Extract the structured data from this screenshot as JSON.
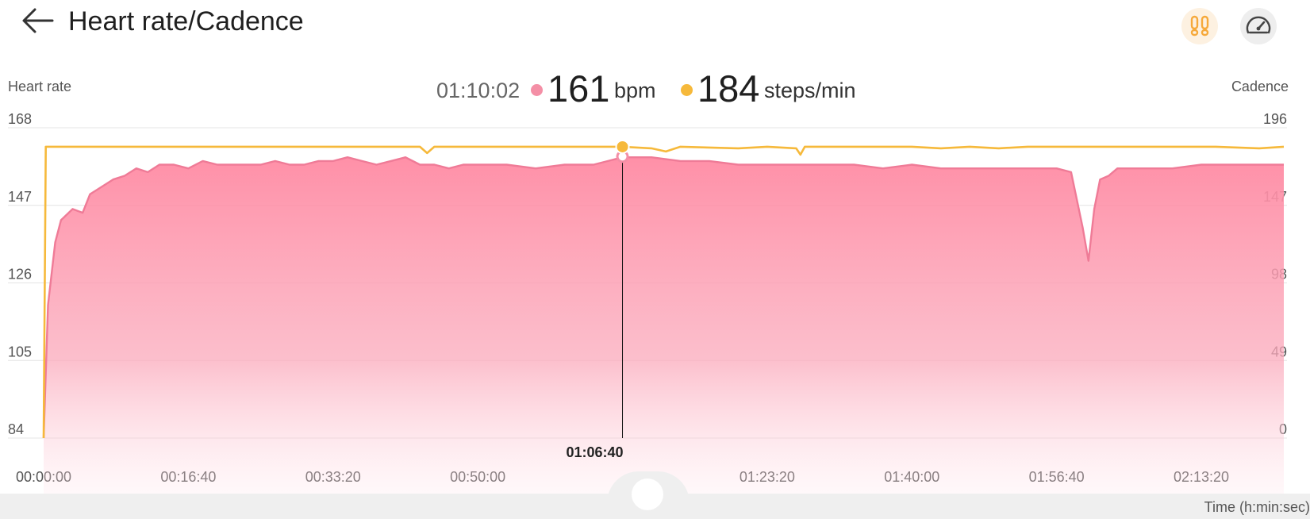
{
  "header": {
    "title": "Heart rate/Cadence"
  },
  "axes": {
    "left_title": "Heart rate",
    "right_title": "Cadence",
    "x_unit": "Time (h:min:sec)"
  },
  "readout": {
    "time": "01:10:02",
    "hr_value": "161",
    "hr_unit": "bpm",
    "cad_value": "184",
    "cad_unit": "steps/min"
  },
  "colors": {
    "heart_rate": "#f48fa6",
    "heart_rate_line": "#ef7b97",
    "cadence": "#f6b93b",
    "steps_accent": "#f6a93b"
  },
  "icons": {
    "back": "arrow-left-icon",
    "steps": "footsteps-icon",
    "speed": "speedometer-icon"
  },
  "chart_data": {
    "type": "area",
    "xlabel": "Time (h:min:sec)",
    "x_ticks": [
      "00:00:00",
      "00:16:40",
      "00:33:20",
      "00:50:00",
      "01:23:20",
      "01:40:00",
      "01:56:40",
      "02:13:20"
    ],
    "x_tick_seconds": [
      0,
      1000,
      2000,
      3000,
      5000,
      6000,
      7000,
      8000
    ],
    "xlim": [
      0,
      8570
    ],
    "cursor": {
      "label": "01:06:40",
      "seconds": 4000
    },
    "left_axis": {
      "title": "Heart rate",
      "ticks": [
        168,
        147,
        126,
        105,
        84
      ],
      "ylim": [
        84,
        168
      ]
    },
    "right_axis": {
      "title": "Cadence",
      "ticks": [
        196,
        147,
        98,
        49,
        0
      ],
      "ylim": [
        0,
        196
      ]
    },
    "grid": true,
    "series": [
      {
        "name": "Heart rate",
        "axis": "left",
        "type": "area",
        "x": [
          0,
          30,
          80,
          120,
          200,
          270,
          320,
          400,
          480,
          560,
          640,
          720,
          800,
          900,
          1000,
          1100,
          1200,
          1300,
          1400,
          1500,
          1600,
          1700,
          1800,
          1900,
          2000,
          2100,
          2200,
          2300,
          2400,
          2500,
          2600,
          2700,
          2800,
          2900,
          3000,
          3200,
          3400,
          3600,
          3800,
          4000,
          4200,
          4400,
          4600,
          4800,
          5000,
          5200,
          5400,
          5600,
          5800,
          6000,
          6200,
          6400,
          6600,
          6800,
          7000,
          7100,
          7180,
          7220,
          7260,
          7300,
          7360,
          7420,
          7500,
          7600,
          7800,
          8000,
          8200,
          8400,
          8570
        ],
        "values": [
          84,
          120,
          137,
          143,
          146,
          145,
          150,
          152,
          154,
          155,
          157,
          156,
          158,
          158,
          157,
          159,
          158,
          158,
          158,
          158,
          159,
          158,
          158,
          159,
          159,
          160,
          159,
          158,
          159,
          160,
          158,
          158,
          157,
          158,
          158,
          158,
          157,
          158,
          158,
          160,
          160,
          159,
          159,
          158,
          158,
          158,
          158,
          158,
          157,
          158,
          157,
          157,
          157,
          157,
          157,
          156,
          141,
          132,
          146,
          154,
          155,
          157,
          157,
          157,
          157,
          158,
          158,
          158,
          158
        ]
      },
      {
        "name": "Cadence",
        "axis": "right",
        "type": "line",
        "x": [
          0,
          15,
          30,
          1200,
          2000,
          2600,
          2650,
          2700,
          3200,
          4000,
          4200,
          4300,
          4400,
          4800,
          5000,
          5200,
          5230,
          5260,
          6000,
          6200,
          6400,
          6600,
          6800,
          7200,
          7500,
          7800,
          8100,
          8400,
          8570
        ],
        "values": [
          0,
          184,
          184,
          184,
          184,
          184,
          180,
          184,
          184,
          184,
          183,
          181,
          184,
          183,
          184,
          183,
          179,
          184,
          184,
          183,
          184,
          183,
          184,
          184,
          184,
          184,
          184,
          183,
          184
        ]
      }
    ]
  }
}
